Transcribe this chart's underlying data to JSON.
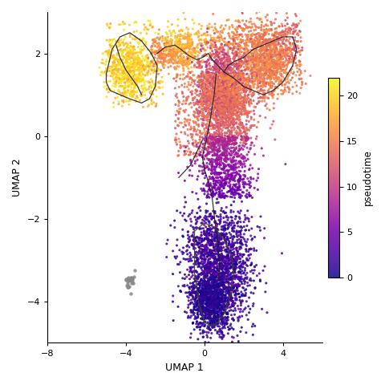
{
  "title": "",
  "xlabel": "UMAP 1",
  "ylabel": "UMAP 2",
  "xlim": [
    -8,
    6
  ],
  "ylim": [
    -5,
    3
  ],
  "colorbar_label": "pseudotime",
  "colorbar_ticks": [
    0,
    5,
    10,
    15,
    20
  ],
  "vmin": 0,
  "vmax": 22,
  "point_size": 5,
  "alpha": 0.85,
  "background_color": "#ffffff",
  "cmap": "plasma",
  "contour_color": "#222222",
  "contour_alpha": 0.9,
  "gray_cluster_color": "#888888",
  "random_seed": 42,
  "xticks": [
    -8,
    -4,
    0,
    4
  ],
  "yticks": [
    -4,
    -2,
    0,
    2
  ]
}
